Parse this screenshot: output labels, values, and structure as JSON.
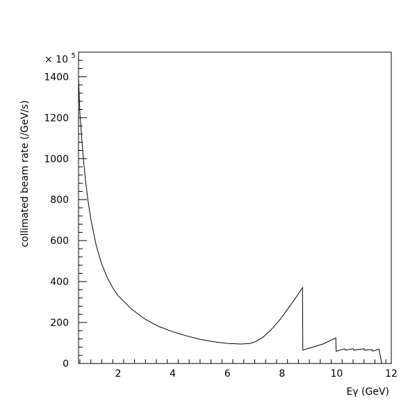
{
  "chart_data": {
    "type": "line",
    "title": "",
    "xlabel": "Eγ (GeV)",
    "ylabel": "collimated beam rate (/GeV/s)",
    "y_multiplier_label": "× 10",
    "y_multiplier_exponent": "5",
    "xlim": [
      0.55,
      12
    ],
    "ylim": [
      0,
      1520
    ],
    "x_ticks": [
      2,
      4,
      6,
      8,
      10,
      12
    ],
    "x_tick_labels": [
      "2",
      "4",
      "6",
      "8",
      "10",
      "12"
    ],
    "y_ticks": [
      0,
      200,
      400,
      600,
      800,
      1000,
      1200,
      1400
    ],
    "y_tick_labels": [
      "0",
      "200",
      "400",
      "600",
      "800",
      "1000",
      "1200",
      "1400"
    ],
    "grid": false,
    "series": [
      {
        "x": [
          0.55,
          0.6,
          0.7,
          0.8,
          0.9,
          1.0,
          1.2,
          1.4,
          1.6,
          1.8,
          2.0,
          2.5,
          3.0,
          3.5,
          4.0,
          4.5,
          5.0,
          5.5,
          6.0,
          6.5,
          6.8,
          7.0,
          7.3,
          7.6,
          7.9,
          8.2,
          8.5,
          8.75,
          8.76,
          9.0,
          9.5,
          9.97,
          9.98,
          10.3,
          10.32,
          10.6,
          10.62,
          11.0,
          11.02,
          11.3,
          11.32,
          11.55,
          11.6,
          11.65
        ],
        "y": [
          1390,
          1220,
          1040,
          900,
          790,
          705,
          575,
          485,
          420,
          370,
          330,
          265,
          215,
          180,
          155,
          135,
          118,
          106,
          98,
          95,
          97,
          105,
          128,
          165,
          210,
          265,
          320,
          370,
          65,
          75,
          95,
          125,
          60,
          72,
          65,
          72,
          65,
          72,
          65,
          68,
          60,
          70,
          35,
          0
        ]
      }
    ]
  }
}
